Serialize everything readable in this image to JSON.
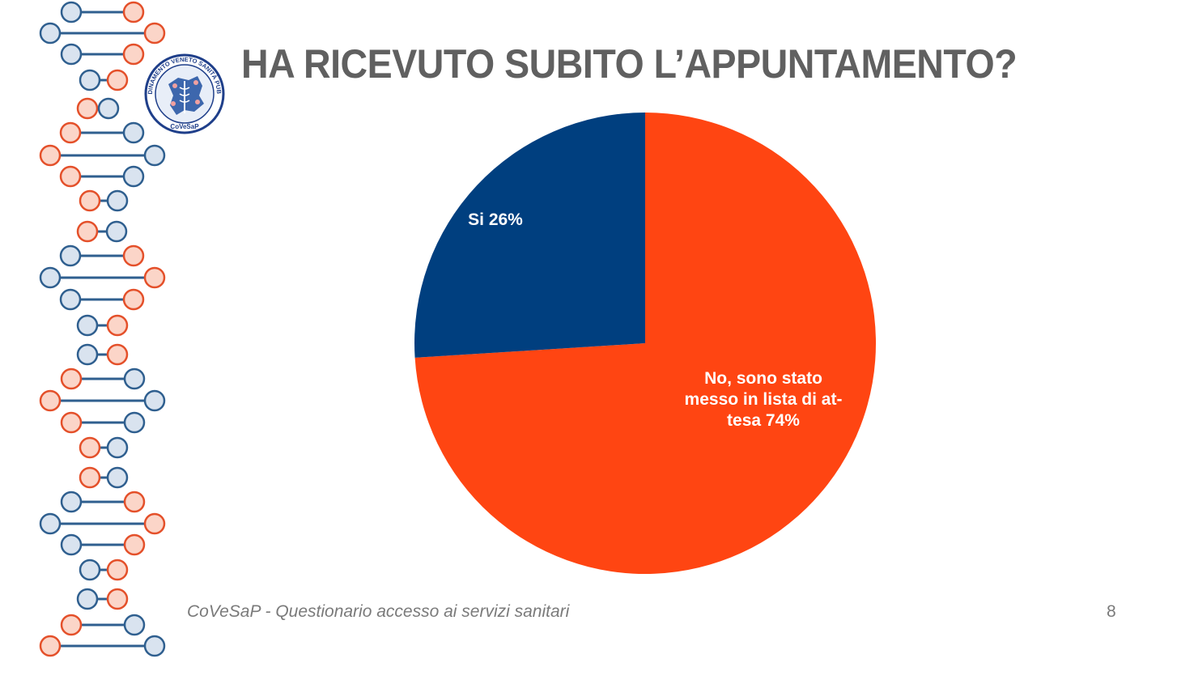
{
  "slide": {
    "title": "HA RICEVUTO SUBITO L’APPUNTAMENTO?",
    "footer": "CoVeSaP - Questionario accesso ai servizi sanitari",
    "page_number": "8"
  },
  "logo": {
    "ring_text": "COORDINAMENTO VENETO SANITÀ PUBBLICA",
    "short_name": "CoVeSaP"
  },
  "colors": {
    "blue": "#003f7f",
    "orange": "#ff4512",
    "dna_blue": "#2f5f8f",
    "dna_orange": "#e4502a",
    "dna_blue_fill": "#d9e3ef",
    "dna_orange_fill": "#fbd5c8",
    "title_gray": "#606060"
  },
  "chart_data": {
    "type": "pie",
    "title": "HA RICEVUTO SUBITO L’APPUNTAMENTO?",
    "slices": [
      {
        "label": "No, sono stato messo in lista di attesa",
        "display_lines": [
          "No, sono stato",
          "messo in lista di at-",
          "tesa 74%"
        ],
        "value": 74,
        "color": "#ff4512"
      },
      {
        "label": "Si",
        "display_lines": [
          "Si 26%"
        ],
        "value": 26,
        "color": "#003f7f"
      }
    ],
    "start_angle": "12 o'clock",
    "direction": "clockwise",
    "legend": "none",
    "data_labels": "inside"
  }
}
